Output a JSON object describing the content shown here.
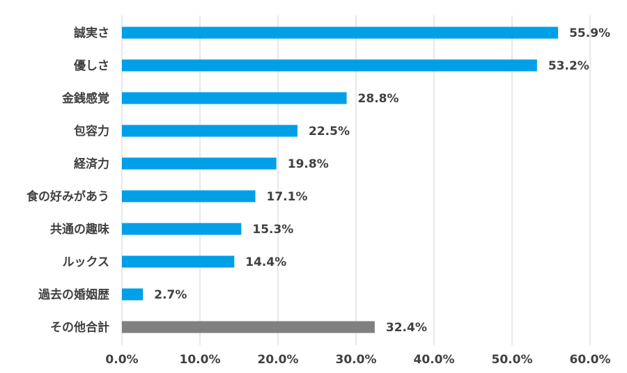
{
  "chart_data": {
    "type": "bar",
    "orientation": "horizontal",
    "title": "",
    "xlabel": "",
    "ylabel": "",
    "xlim": [
      0,
      60
    ],
    "x_ticks": [
      0,
      10,
      20,
      30,
      40,
      50,
      60
    ],
    "x_tick_labels": [
      "0.0%",
      "10.0%",
      "20.0%",
      "30.0%",
      "40.0%",
      "50.0%",
      "60.0%"
    ],
    "grid": true,
    "legend": "none",
    "categories": [
      "誠実さ",
      "優しさ",
      "金銭感覚",
      "包容力",
      "経済力",
      "食の好みがあう",
      "共通の趣味",
      "ルックス",
      "過去の婚姻歴",
      "その他合計"
    ],
    "values": [
      55.9,
      53.2,
      28.8,
      22.5,
      19.8,
      17.1,
      15.3,
      14.4,
      2.7,
      32.4
    ],
    "data_labels": [
      "55.9%",
      "53.2%",
      "28.8%",
      "22.5%",
      "19.8%",
      "17.1%",
      "15.3%",
      "14.4%",
      "2.7%",
      "32.4%"
    ],
    "colors": {
      "default_bar": "#00a0e9",
      "other_bar": "#808080",
      "gridline": "#d9d9d9",
      "text": "#404040"
    },
    "bar_colors": [
      "#00a0e9",
      "#00a0e9",
      "#00a0e9",
      "#00a0e9",
      "#00a0e9",
      "#00a0e9",
      "#00a0e9",
      "#00a0e9",
      "#00a0e9",
      "#808080"
    ]
  }
}
